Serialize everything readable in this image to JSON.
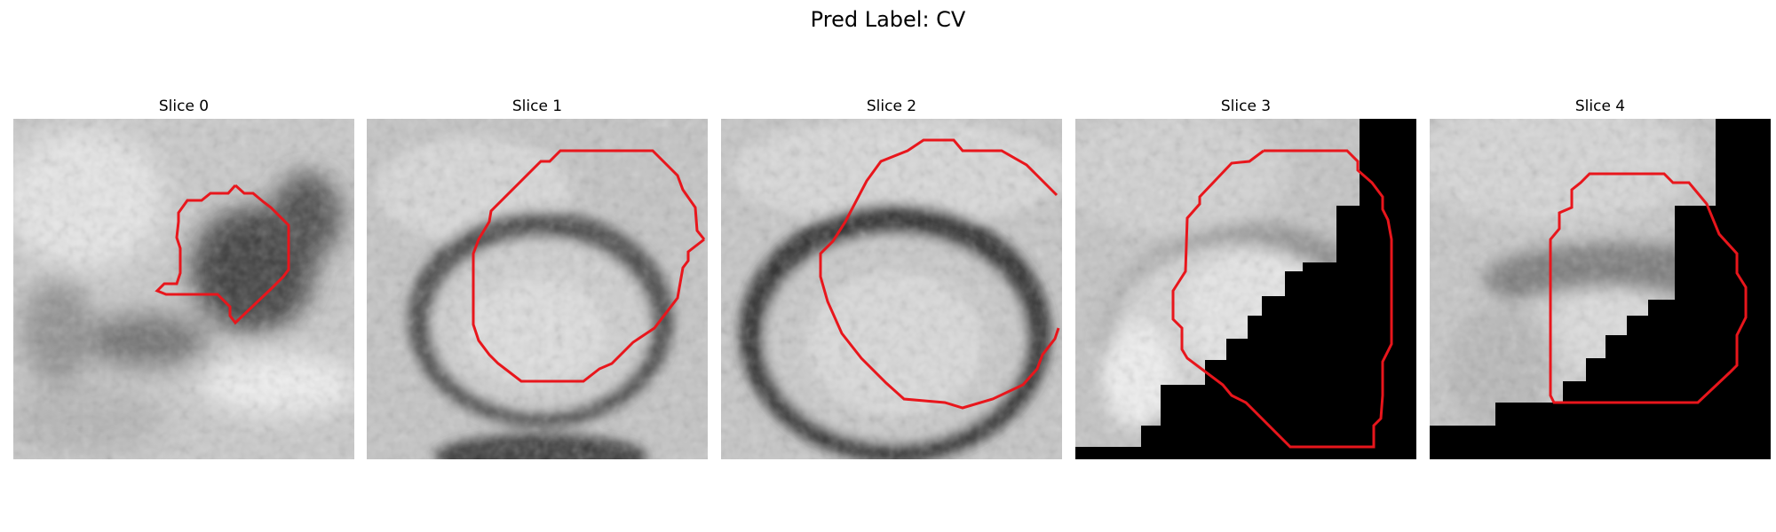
{
  "figure": {
    "title": "Pred Label: CV",
    "slices": [
      {
        "label": "Slice 0"
      },
      {
        "label": "Slice 1"
      },
      {
        "label": "Slice 2"
      },
      {
        "label": "Slice 3"
      },
      {
        "label": "Slice 4"
      }
    ]
  },
  "colors": {
    "contour": "#e8161c",
    "background": "#ffffff",
    "mask": "#000000"
  }
}
